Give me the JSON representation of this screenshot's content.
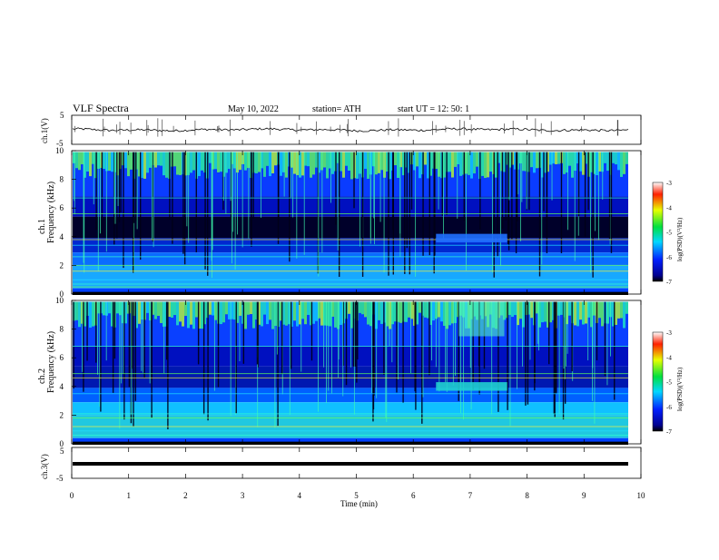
{
  "header": {
    "title": "VLF Spectra",
    "date": "May 10, 2022",
    "station": "station= ATH",
    "start_ut": "start UT = 12: 50: 1"
  },
  "chart_data": [
    {
      "type": "line",
      "panel": "ch1-waveform",
      "ylabel": "ch.1(V)",
      "ylim": [
        -5,
        5
      ],
      "yticks": [
        "5",
        "-5"
      ]
    },
    {
      "type": "heatmap",
      "panel": "ch1-spectrogram",
      "ylabel_channel": "ch.1",
      "ylabel": "Frequency (kHz)",
      "ylim": [
        0,
        10
      ],
      "yticks": [
        "10",
        "8",
        "6",
        "4",
        "2",
        "0"
      ],
      "colorbar": {
        "label": "log(PSD)(V²/Hz)",
        "range": [
          -7,
          -3
        ],
        "ticks": [
          "-3",
          "-4",
          "-5",
          "-6",
          "-7"
        ]
      }
    },
    {
      "type": "heatmap",
      "panel": "ch2-spectrogram",
      "ylabel_channel": "ch.2",
      "ylabel": "Frequency (kHz)",
      "ylim": [
        0,
        10
      ],
      "yticks": [
        "10",
        "8",
        "6",
        "4",
        "2",
        "0"
      ],
      "colorbar": {
        "label": "log(PSD)(V²/Hz)",
        "range": [
          -7,
          -3
        ],
        "ticks": [
          "-3",
          "-4",
          "-5",
          "-6",
          "-7"
        ]
      }
    },
    {
      "type": "line",
      "panel": "ch3-waveform",
      "ylabel": "ch.3(V)",
      "ylim": [
        -5,
        5
      ],
      "yticks": [
        "5",
        "-5"
      ],
      "xlabel": "Time (min)",
      "xlim": [
        0,
        10
      ],
      "xticks": [
        "0",
        "1",
        "2",
        "3",
        "4",
        "5",
        "6",
        "7",
        "8",
        "9",
        "10"
      ]
    }
  ]
}
